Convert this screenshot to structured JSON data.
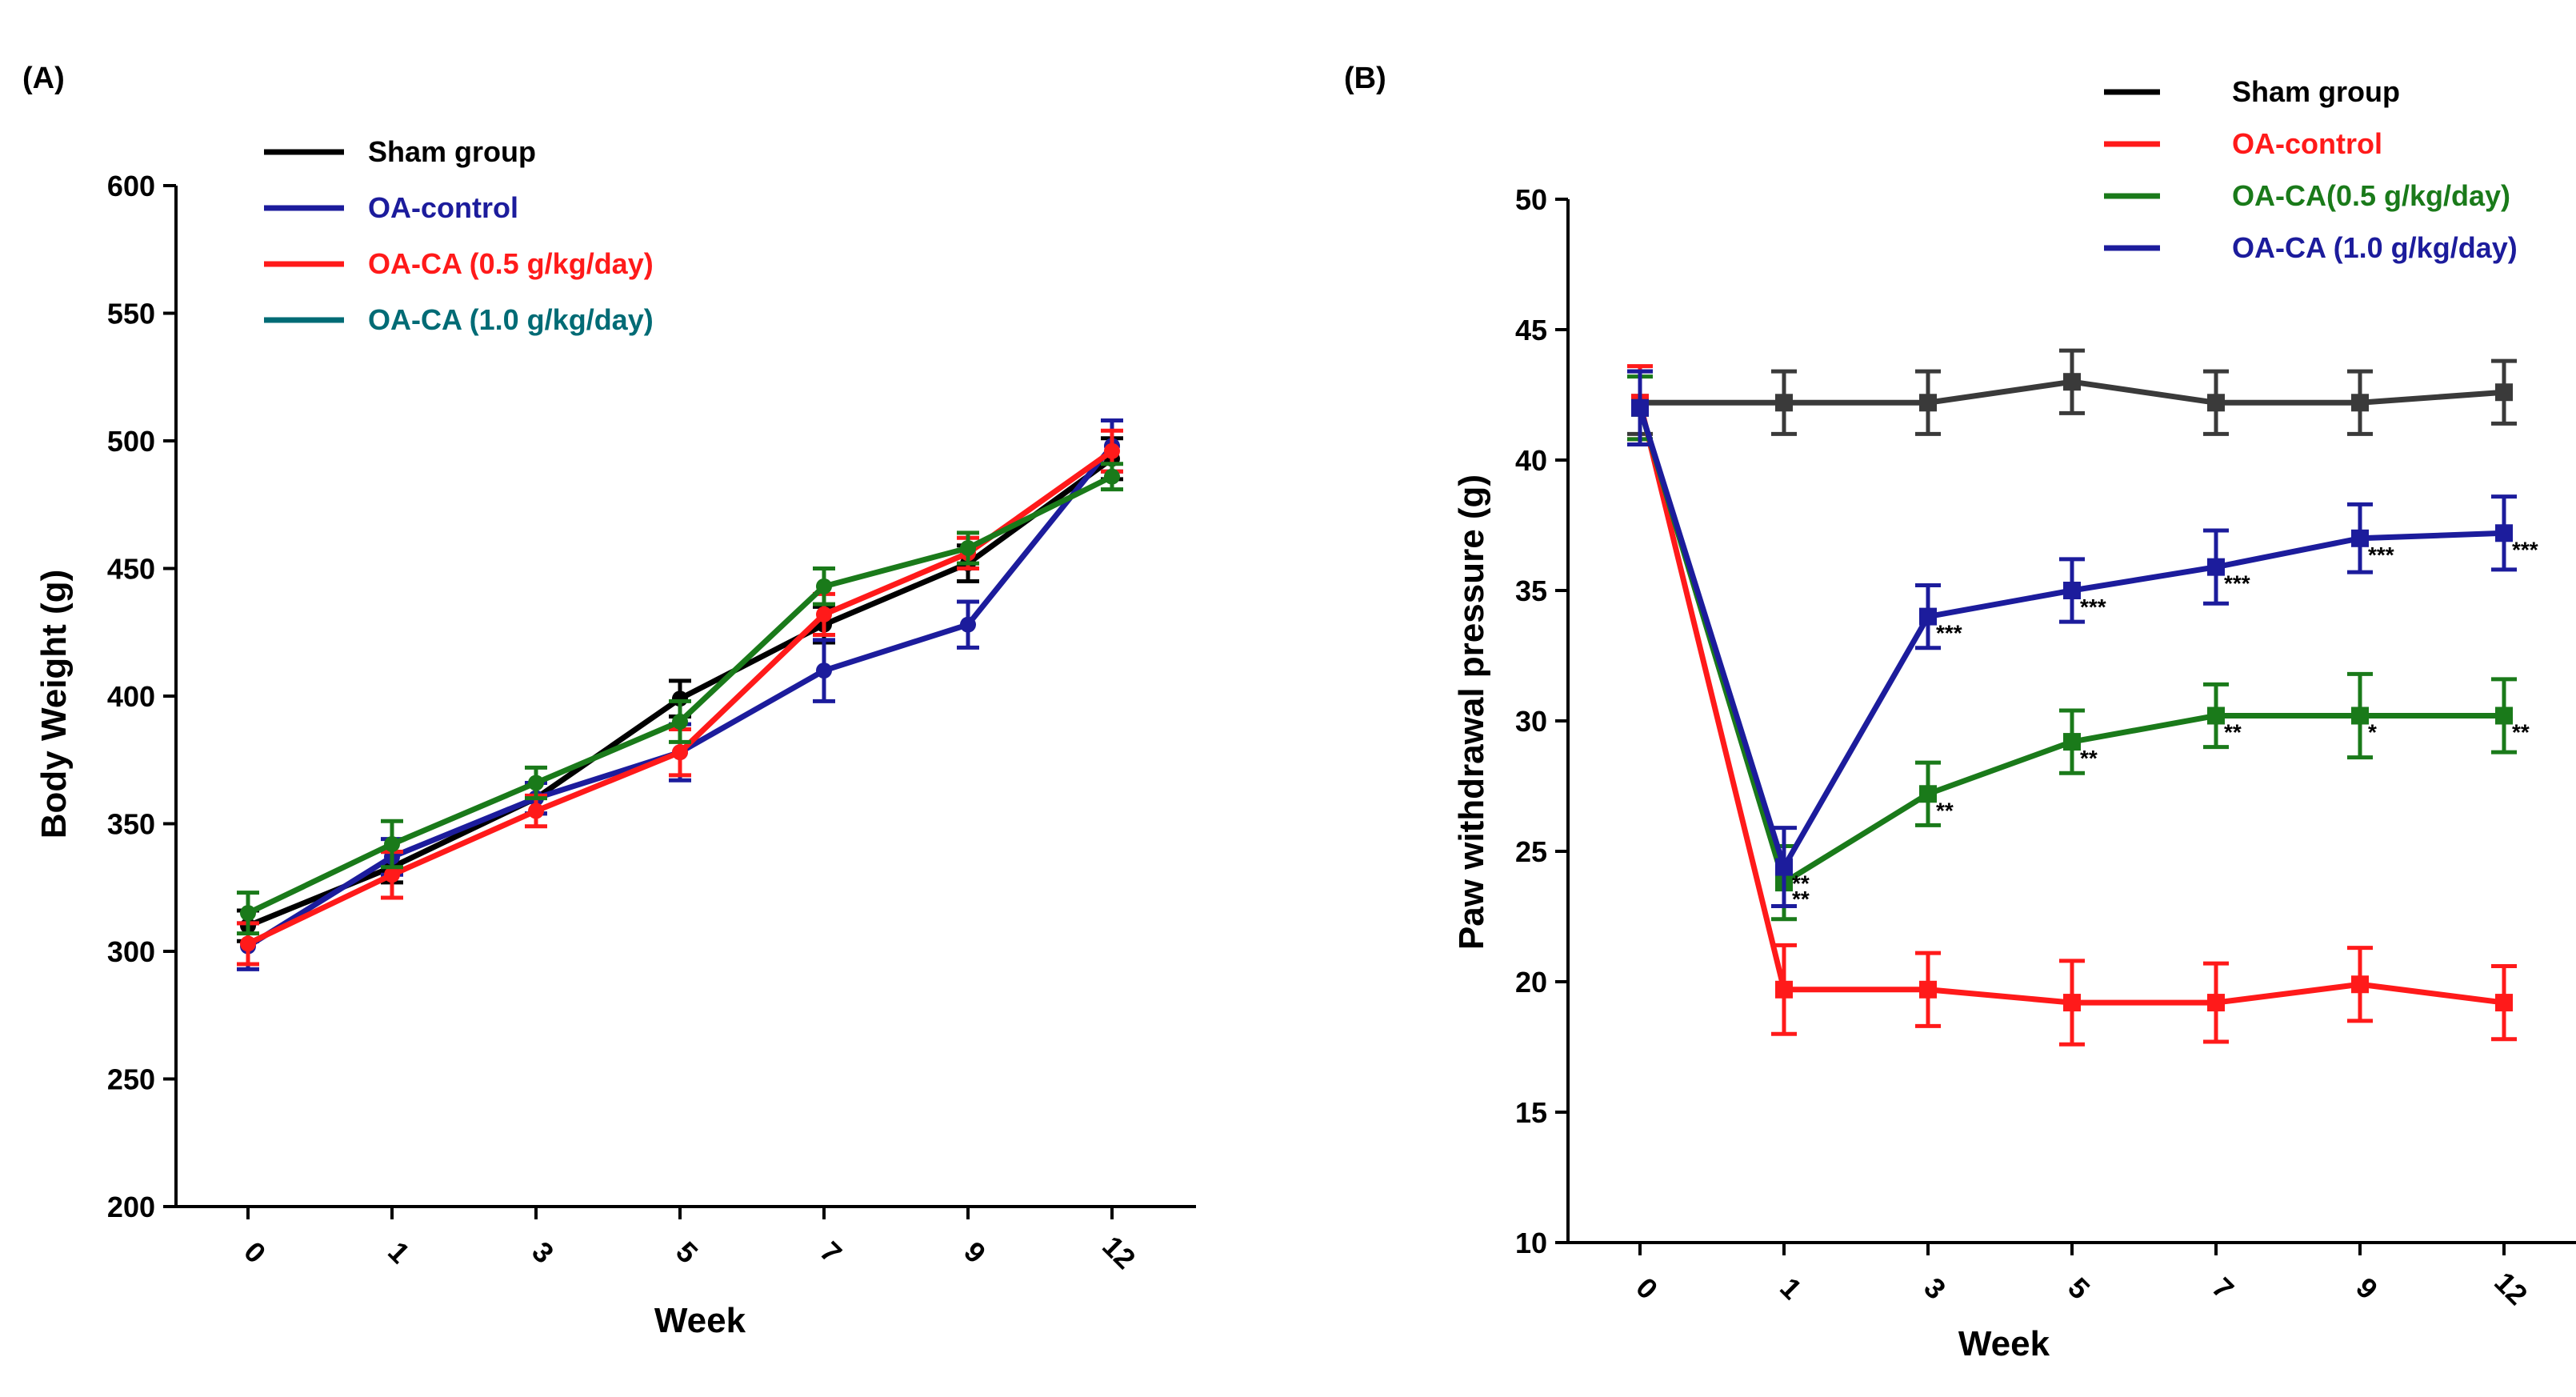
{
  "chart_data": [
    {
      "type": "line",
      "panel": "(A)",
      "title": "",
      "xlabel": "Week",
      "ylabel": "Body Weight (g)",
      "categories": [
        "0",
        "1",
        "3",
        "5",
        "7",
        "9",
        "12"
      ],
      "ylim": [
        200,
        600
      ],
      "yticks": [
        "200",
        "250",
        "300",
        "350",
        "400",
        "450",
        "500",
        "550",
        "600"
      ],
      "grid": false,
      "legend_position": "top-left",
      "series": [
        {
          "name": "Sham group",
          "color": "#000000",
          "values": [
            310,
            333,
            360,
            399,
            428,
            452,
            493
          ],
          "errors": [
            6,
            6,
            6,
            7,
            7,
            7,
            8
          ],
          "labels": [
            "",
            "",
            "",
            "",
            "",
            "",
            ""
          ]
        },
        {
          "name": "OA-control",
          "color": "#1c1c9c",
          "values": [
            302,
            337,
            360,
            378,
            410,
            428,
            498
          ],
          "errors": [
            9,
            7,
            6,
            11,
            12,
            9,
            10
          ],
          "labels": [
            "",
            "",
            "",
            "",
            "",
            "",
            ""
          ]
        },
        {
          "name": "OA-CA (0.5 g/kg/day)",
          "color": "#ff1a1a",
          "values": [
            303,
            330,
            355,
            378,
            432,
            456,
            496
          ],
          "errors": [
            8,
            9,
            6,
            9,
            8,
            6,
            8
          ],
          "labels": [
            "",
            "",
            "",
            "",
            "",
            "",
            ""
          ]
        },
        {
          "name": "OA-CA (1.0 g/kg/day)",
          "color": "#1a7a1a",
          "legend_color": "#006b75",
          "values": [
            315,
            342,
            366,
            390,
            443,
            458,
            486
          ],
          "errors": [
            8,
            9,
            6,
            8,
            7,
            6,
            5
          ],
          "labels": [
            "",
            "",
            "",
            "",
            "",
            "",
            ""
          ]
        }
      ]
    },
    {
      "type": "line",
      "panel": "(B)",
      "title": "",
      "xlabel": "Week",
      "ylabel": "Paw withdrawal pressure (g)",
      "categories": [
        "0",
        "1",
        "3",
        "5",
        "7",
        "9",
        "12"
      ],
      "ylim": [
        10,
        50
      ],
      "yticks": [
        "10",
        "15",
        "20",
        "25",
        "30",
        "35",
        "40",
        "45",
        "50"
      ],
      "grid": false,
      "legend_position": "top-right",
      "series": [
        {
          "name": "Sham group",
          "color": "#3a3a3a",
          "legend_color": "#000000",
          "values": [
            42.2,
            42.2,
            42.2,
            43.0,
            42.2,
            42.2,
            42.6
          ],
          "errors": [
            1.2,
            1.2,
            1.2,
            1.2,
            1.2,
            1.2,
            1.2
          ],
          "labels": [
            "",
            "",
            "",
            "",
            "",
            "",
            ""
          ]
        },
        {
          "name": "OA-control",
          "color": "#ff1a1a",
          "values": [
            42.2,
            19.7,
            19.7,
            19.2,
            19.2,
            19.9,
            19.2
          ],
          "errors": [
            1.4,
            1.7,
            1.4,
            1.6,
            1.5,
            1.4,
            1.4
          ],
          "labels": [
            "",
            "",
            "",
            "",
            "",
            "",
            ""
          ]
        },
        {
          "name": "OA-CA(0.5 g/kg/day)",
          "color": "#1a7a1a",
          "values": [
            42.0,
            23.8,
            27.2,
            29.2,
            30.2,
            30.2,
            30.2
          ],
          "errors": [
            1.2,
            1.4,
            1.2,
            1.2,
            1.2,
            1.6,
            1.4
          ],
          "labels": [
            "",
            "**",
            "**",
            "**",
            "**",
            "*",
            "**"
          ]
        },
        {
          "name": "OA-CA (1.0 g/kg/day)",
          "color": "#1c1c9c",
          "values": [
            42.0,
            24.4,
            34.0,
            35.0,
            35.9,
            37.0,
            37.2
          ],
          "errors": [
            1.4,
            1.5,
            1.2,
            1.2,
            1.4,
            1.3,
            1.4
          ],
          "labels": [
            "",
            "**",
            "***",
            "***",
            "***",
            "***",
            "***"
          ]
        }
      ]
    }
  ]
}
